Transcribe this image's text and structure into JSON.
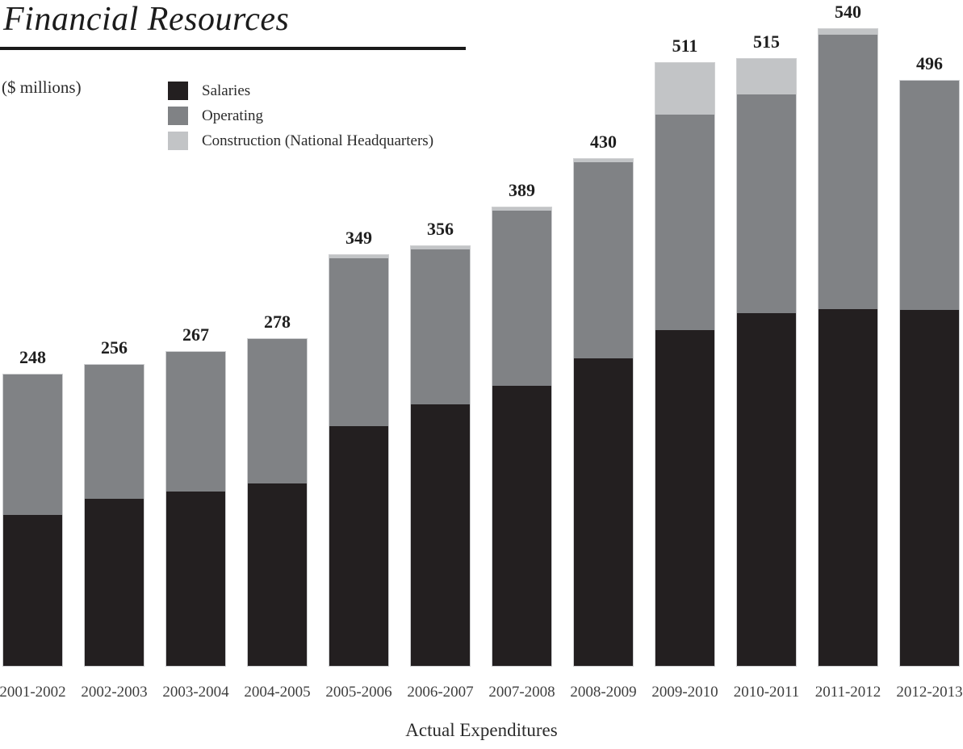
{
  "header": {
    "title": "Financial Resources",
    "units_label": "($ millions)"
  },
  "legend": {
    "items": [
      {
        "label": "Salaries",
        "color": "#231F20"
      },
      {
        "label": "Operating",
        "color": "#808285"
      },
      {
        "label": "Construction (National Headquarters)",
        "color": "#C2C4C6"
      }
    ]
  },
  "chart_data": {
    "type": "bar",
    "stacked": true,
    "title": "Financial Resources",
    "units": "$ millions",
    "xlabel": "Actual Expenditures",
    "ylabel": "",
    "ylim": [
      0,
      560
    ],
    "grid": false,
    "legend_position": "upper-left",
    "data_labels": "stack totals above bars",
    "categories": [
      "2001-2002",
      "2002-2003",
      "2003-2004",
      "2004-2005",
      "2005-2006",
      "2006-2007",
      "2007-2008",
      "2008-2009",
      "2009-2010",
      "2010-2011",
      "2011-2012",
      "2012-2013"
    ],
    "series": [
      {
        "name": "Salaries",
        "color": "#231F20",
        "values": [
          129,
          143,
          149,
          156,
          204,
          222,
          238,
          261,
          285,
          300,
          303,
          302
        ]
      },
      {
        "name": "Operating",
        "color": "#808285",
        "values": [
          119,
          113,
          118,
          122,
          142,
          131,
          148,
          166,
          182,
          185,
          232,
          194
        ]
      },
      {
        "name": "Construction (National Headquarters)",
        "color": "#C2C4C6",
        "values": [
          0,
          0,
          0,
          0,
          3,
          3,
          3,
          3,
          44,
          30,
          5,
          0
        ]
      }
    ],
    "totals": [
      248,
      256,
      267,
      278,
      349,
      356,
      389,
      430,
      511,
      515,
      540,
      496
    ]
  },
  "layout_hints": {
    "note": "values estimated from bar pixel heights; totals are printed on chart"
  }
}
